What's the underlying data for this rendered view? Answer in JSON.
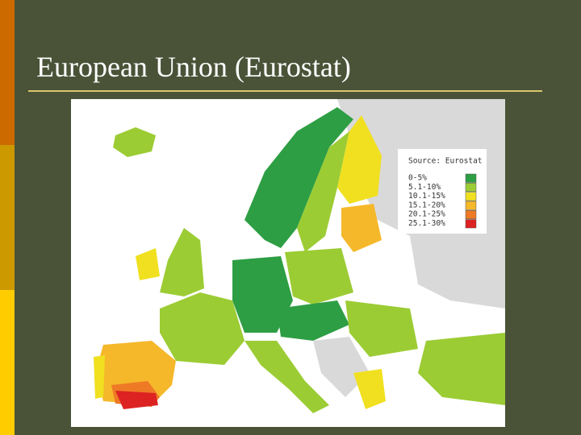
{
  "header": {
    "title": "European Union (Eurostat)"
  },
  "map": {
    "source": "Source: Eurostat",
    "legend": [
      {
        "label": "0-5%",
        "color": "#2e9e44"
      },
      {
        "label": "5.1-10%",
        "color": "#9ccc34"
      },
      {
        "label": "10.1-15%",
        "color": "#f0e020"
      },
      {
        "label": "15.1-20%",
        "color": "#f5b82a"
      },
      {
        "label": "20.1-25%",
        "color": "#ee7a26"
      },
      {
        "label": "25.1-30%",
        "color": "#dd2222"
      }
    ]
  }
}
